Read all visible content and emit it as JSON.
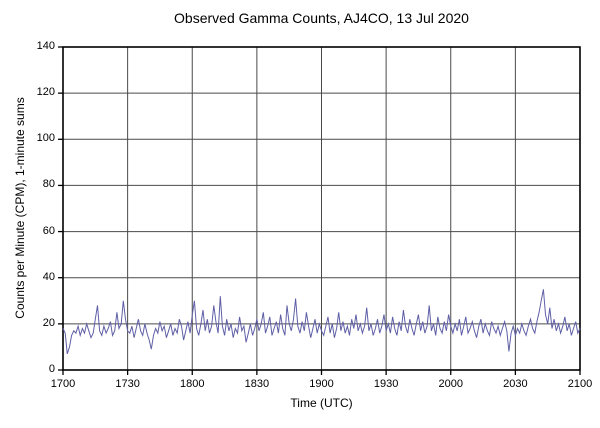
{
  "chart_data": {
    "type": "line",
    "title": "Observed Gamma Counts, AJ4CO, 13 Jul 2020",
    "xlabel": "Time (UTC)",
    "ylabel": "Counts per Minute (CPM), 1-minute sums",
    "ylim": [
      0,
      140
    ],
    "yticks": [
      0,
      20,
      40,
      60,
      80,
      100,
      120,
      140
    ],
    "xticks": [
      {
        "minute": 0,
        "label": "1700"
      },
      {
        "minute": 30,
        "label": "1730"
      },
      {
        "minute": 60,
        "label": "1800"
      },
      {
        "minute": 90,
        "label": "1830"
      },
      {
        "minute": 120,
        "label": "1900"
      },
      {
        "minute": 150,
        "label": "1930"
      },
      {
        "minute": 180,
        "label": "2000"
      },
      {
        "minute": 210,
        "label": "2030"
      },
      {
        "minute": 240,
        "label": "2100"
      }
    ],
    "grid": true,
    "line_color": "#5f5fa7",
    "grid_color": "#4a4a4a",
    "frame_color": "#000000",
    "series": [
      {
        "name": "gamma-counts-cpm",
        "start_minute": 0,
        "values": [
          18,
          16,
          7,
          10,
          15,
          17,
          16,
          19,
          15,
          18,
          16,
          20,
          17,
          14,
          16,
          22,
          28,
          17,
          15,
          19,
          16,
          18,
          21,
          15,
          17,
          25,
          18,
          20,
          30,
          22,
          17,
          16,
          19,
          14,
          18,
          22,
          17,
          15,
          20,
          16,
          13,
          9,
          15,
          18,
          16,
          21,
          17,
          19,
          14,
          17,
          20,
          15,
          18,
          16,
          22,
          19,
          13,
          17,
          21,
          16,
          24,
          30,
          18,
          15,
          20,
          26,
          17,
          22,
          16,
          19,
          28,
          21,
          16,
          32,
          19,
          15,
          22,
          17,
          20,
          14,
          18,
          16,
          23,
          17,
          19,
          12,
          16,
          20,
          15,
          18,
          22,
          17,
          20,
          25,
          16,
          19,
          23,
          15,
          18,
          21,
          16,
          24,
          18,
          15,
          28,
          20,
          17,
          22,
          31,
          19,
          16,
          21,
          17,
          25,
          19,
          14,
          18,
          22,
          16,
          20,
          17,
          15,
          19,
          23,
          16,
          20,
          14,
          18,
          25,
          17,
          21,
          16,
          19,
          15,
          22,
          18,
          24,
          17,
          20,
          16,
          19,
          27,
          17,
          20,
          15,
          18,
          22,
          16,
          19,
          24,
          17,
          20,
          16,
          23,
          18,
          15,
          21,
          17,
          26,
          19,
          16,
          22,
          18,
          15,
          20,
          24,
          17,
          21,
          16,
          19,
          28,
          17,
          20,
          15,
          23,
          18,
          16,
          21,
          17,
          24,
          19,
          16,
          20,
          17,
          22,
          15,
          19,
          23,
          16,
          18,
          21,
          17,
          14,
          19,
          22,
          16,
          20,
          17,
          15,
          21,
          18,
          16,
          19,
          15,
          18,
          21,
          17,
          8,
          16,
          19,
          15,
          18,
          16,
          20,
          17,
          15,
          19,
          22,
          18,
          16,
          21,
          25,
          30,
          35,
          24,
          20,
          27,
          18,
          22,
          17,
          20,
          16,
          19,
          23,
          17,
          20,
          15,
          18,
          21,
          16,
          18
        ]
      }
    ]
  }
}
